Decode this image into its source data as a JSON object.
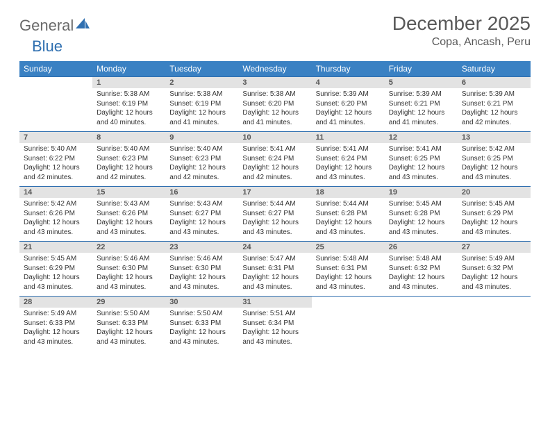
{
  "brand": {
    "part1": "General",
    "part2": "Blue"
  },
  "title": "December 2025",
  "location": "Copa, Ancash, Peru",
  "colors": {
    "header_bg": "#3a81c3",
    "header_text": "#ffffff",
    "rule": "#2f6fb0",
    "daynum_bg": "#e3e3e3",
    "title_color": "#595959"
  },
  "daysOfWeek": [
    "Sunday",
    "Monday",
    "Tuesday",
    "Wednesday",
    "Thursday",
    "Friday",
    "Saturday"
  ],
  "labels": {
    "sunrise": "Sunrise: ",
    "sunset": "Sunset: ",
    "daylight": "Daylight: "
  },
  "weeks": [
    [
      null,
      {
        "n": "1",
        "sr": "5:38 AM",
        "ss": "6:19 PM",
        "dl": "12 hours and 40 minutes."
      },
      {
        "n": "2",
        "sr": "5:38 AM",
        "ss": "6:19 PM",
        "dl": "12 hours and 41 minutes."
      },
      {
        "n": "3",
        "sr": "5:38 AM",
        "ss": "6:20 PM",
        "dl": "12 hours and 41 minutes."
      },
      {
        "n": "4",
        "sr": "5:39 AM",
        "ss": "6:20 PM",
        "dl": "12 hours and 41 minutes."
      },
      {
        "n": "5",
        "sr": "5:39 AM",
        "ss": "6:21 PM",
        "dl": "12 hours and 41 minutes."
      },
      {
        "n": "6",
        "sr": "5:39 AM",
        "ss": "6:21 PM",
        "dl": "12 hours and 42 minutes."
      }
    ],
    [
      {
        "n": "7",
        "sr": "5:40 AM",
        "ss": "6:22 PM",
        "dl": "12 hours and 42 minutes."
      },
      {
        "n": "8",
        "sr": "5:40 AM",
        "ss": "6:23 PM",
        "dl": "12 hours and 42 minutes."
      },
      {
        "n": "9",
        "sr": "5:40 AM",
        "ss": "6:23 PM",
        "dl": "12 hours and 42 minutes."
      },
      {
        "n": "10",
        "sr": "5:41 AM",
        "ss": "6:24 PM",
        "dl": "12 hours and 42 minutes."
      },
      {
        "n": "11",
        "sr": "5:41 AM",
        "ss": "6:24 PM",
        "dl": "12 hours and 43 minutes."
      },
      {
        "n": "12",
        "sr": "5:41 AM",
        "ss": "6:25 PM",
        "dl": "12 hours and 43 minutes."
      },
      {
        "n": "13",
        "sr": "5:42 AM",
        "ss": "6:25 PM",
        "dl": "12 hours and 43 minutes."
      }
    ],
    [
      {
        "n": "14",
        "sr": "5:42 AM",
        "ss": "6:26 PM",
        "dl": "12 hours and 43 minutes."
      },
      {
        "n": "15",
        "sr": "5:43 AM",
        "ss": "6:26 PM",
        "dl": "12 hours and 43 minutes."
      },
      {
        "n": "16",
        "sr": "5:43 AM",
        "ss": "6:27 PM",
        "dl": "12 hours and 43 minutes."
      },
      {
        "n": "17",
        "sr": "5:44 AM",
        "ss": "6:27 PM",
        "dl": "12 hours and 43 minutes."
      },
      {
        "n": "18",
        "sr": "5:44 AM",
        "ss": "6:28 PM",
        "dl": "12 hours and 43 minutes."
      },
      {
        "n": "19",
        "sr": "5:45 AM",
        "ss": "6:28 PM",
        "dl": "12 hours and 43 minutes."
      },
      {
        "n": "20",
        "sr": "5:45 AM",
        "ss": "6:29 PM",
        "dl": "12 hours and 43 minutes."
      }
    ],
    [
      {
        "n": "21",
        "sr": "5:45 AM",
        "ss": "6:29 PM",
        "dl": "12 hours and 43 minutes."
      },
      {
        "n": "22",
        "sr": "5:46 AM",
        "ss": "6:30 PM",
        "dl": "12 hours and 43 minutes."
      },
      {
        "n": "23",
        "sr": "5:46 AM",
        "ss": "6:30 PM",
        "dl": "12 hours and 43 minutes."
      },
      {
        "n": "24",
        "sr": "5:47 AM",
        "ss": "6:31 PM",
        "dl": "12 hours and 43 minutes."
      },
      {
        "n": "25",
        "sr": "5:48 AM",
        "ss": "6:31 PM",
        "dl": "12 hours and 43 minutes."
      },
      {
        "n": "26",
        "sr": "5:48 AM",
        "ss": "6:32 PM",
        "dl": "12 hours and 43 minutes."
      },
      {
        "n": "27",
        "sr": "5:49 AM",
        "ss": "6:32 PM",
        "dl": "12 hours and 43 minutes."
      }
    ],
    [
      {
        "n": "28",
        "sr": "5:49 AM",
        "ss": "6:33 PM",
        "dl": "12 hours and 43 minutes."
      },
      {
        "n": "29",
        "sr": "5:50 AM",
        "ss": "6:33 PM",
        "dl": "12 hours and 43 minutes."
      },
      {
        "n": "30",
        "sr": "5:50 AM",
        "ss": "6:33 PM",
        "dl": "12 hours and 43 minutes."
      },
      {
        "n": "31",
        "sr": "5:51 AM",
        "ss": "6:34 PM",
        "dl": "12 hours and 43 minutes."
      },
      null,
      null,
      null
    ]
  ]
}
